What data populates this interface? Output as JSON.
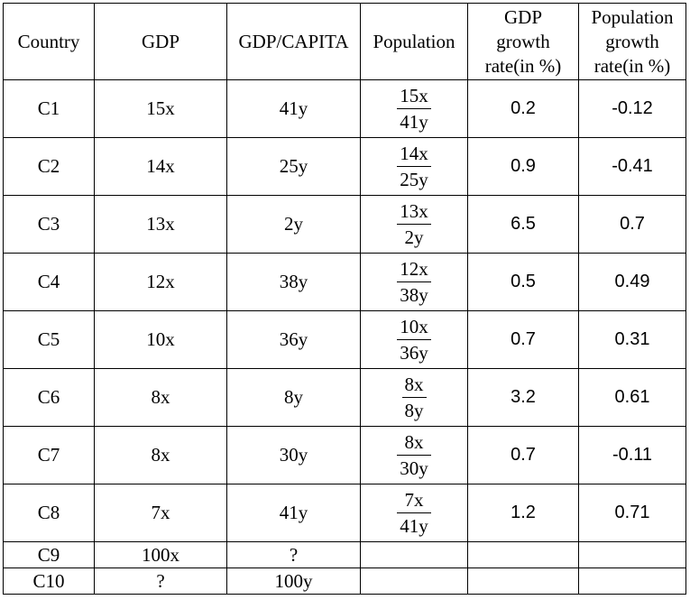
{
  "table": {
    "headers": [
      "Country",
      "GDP",
      "GDP/CAPITA",
      "Population",
      "GDP\ngrowth\nrate(in %)",
      "Population\ngrowth\nrate(in %)"
    ],
    "rows": [
      {
        "country": "C1",
        "gdp": "15x",
        "gdp_per_capita": "41y",
        "population": {
          "numerator": "15x",
          "denominator": "41y"
        },
        "gdp_growth": "0.2",
        "population_growth": "-0.12"
      },
      {
        "country": "C2",
        "gdp": "14x",
        "gdp_per_capita": "25y",
        "population": {
          "numerator": "14x",
          "denominator": "25y"
        },
        "gdp_growth": "0.9",
        "population_growth": "-0.41"
      },
      {
        "country": "C3",
        "gdp": "13x",
        "gdp_per_capita": "2y",
        "population": {
          "numerator": "13x",
          "denominator": "2y"
        },
        "gdp_growth": "6.5",
        "population_growth": "0.7"
      },
      {
        "country": "C4",
        "gdp": "12x",
        "gdp_per_capita": "38y",
        "population": {
          "numerator": "12x",
          "denominator": "38y"
        },
        "gdp_growth": "0.5",
        "population_growth": "0.49"
      },
      {
        "country": "C5",
        "gdp": "10x",
        "gdp_per_capita": "36y",
        "population": {
          "numerator": "10x",
          "denominator": "36y"
        },
        "gdp_growth": "0.7",
        "population_growth": "0.31"
      },
      {
        "country": "C6",
        "gdp": "8x",
        "gdp_per_capita": "8y",
        "population": {
          "numerator": "8x",
          "denominator": "8y"
        },
        "gdp_growth": "3.2",
        "population_growth": "0.61"
      },
      {
        "country": "C7",
        "gdp": "8x",
        "gdp_per_capita": "30y",
        "population": {
          "numerator": "8x",
          "denominator": "30y"
        },
        "gdp_growth": "0.7",
        "population_growth": "-0.11"
      },
      {
        "country": "C8",
        "gdp": "7x",
        "gdp_per_capita": "41y",
        "population": {
          "numerator": "7x",
          "denominator": "41y"
        },
        "gdp_growth": "1.2",
        "population_growth": "0.71"
      },
      {
        "country": "C9",
        "gdp": "100x",
        "gdp_per_capita": "?",
        "population": null,
        "gdp_growth": "",
        "population_growth": ""
      },
      {
        "country": "C10",
        "gdp": "?",
        "gdp_per_capita": "100y",
        "population": null,
        "gdp_growth": "",
        "population_growth": ""
      }
    ]
  }
}
